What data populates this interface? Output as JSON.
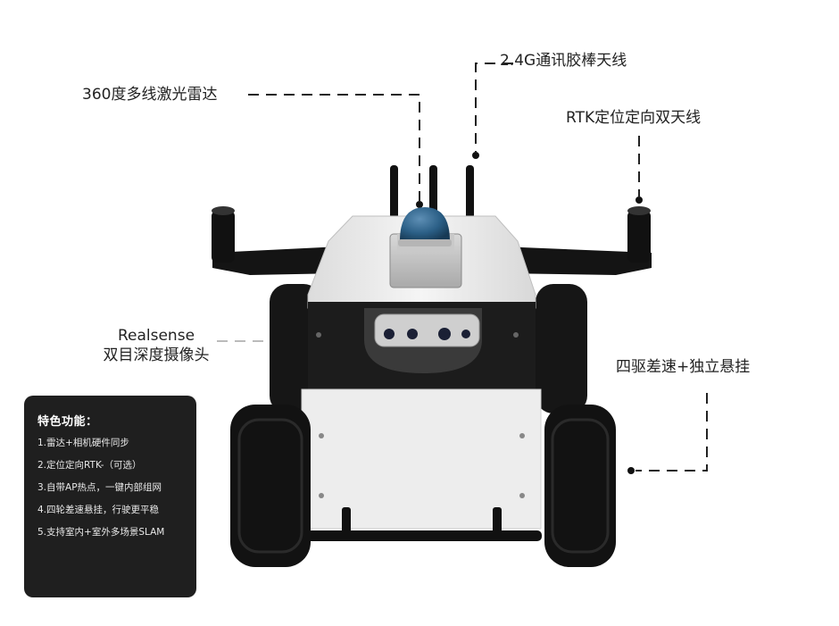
{
  "callouts": {
    "lidar": "360度多线激光雷达",
    "antenna": "2.4G通讯胶棒天线",
    "rtk": "RTK定位定向双天线",
    "camera_line1": "Realsense",
    "camera_line2": "双目深度摄像头",
    "drive": "四驱差速+独立悬挂"
  },
  "features": {
    "title": "特色功能：",
    "items": [
      "1.雷达+相机硬件同步",
      "2.定位定向RTK-（可选）",
      "3.自带AP热点，一键内部组网",
      "4.四轮差速悬挂，行驶更平稳",
      "5.支持室内+室外多场景SLAM"
    ]
  },
  "colors": {
    "panel_bg": "#1f1f1f",
    "robot_body": "#efefef",
    "robot_dark": "#1c1c1c",
    "lidar_dome": "#2b5f86"
  }
}
